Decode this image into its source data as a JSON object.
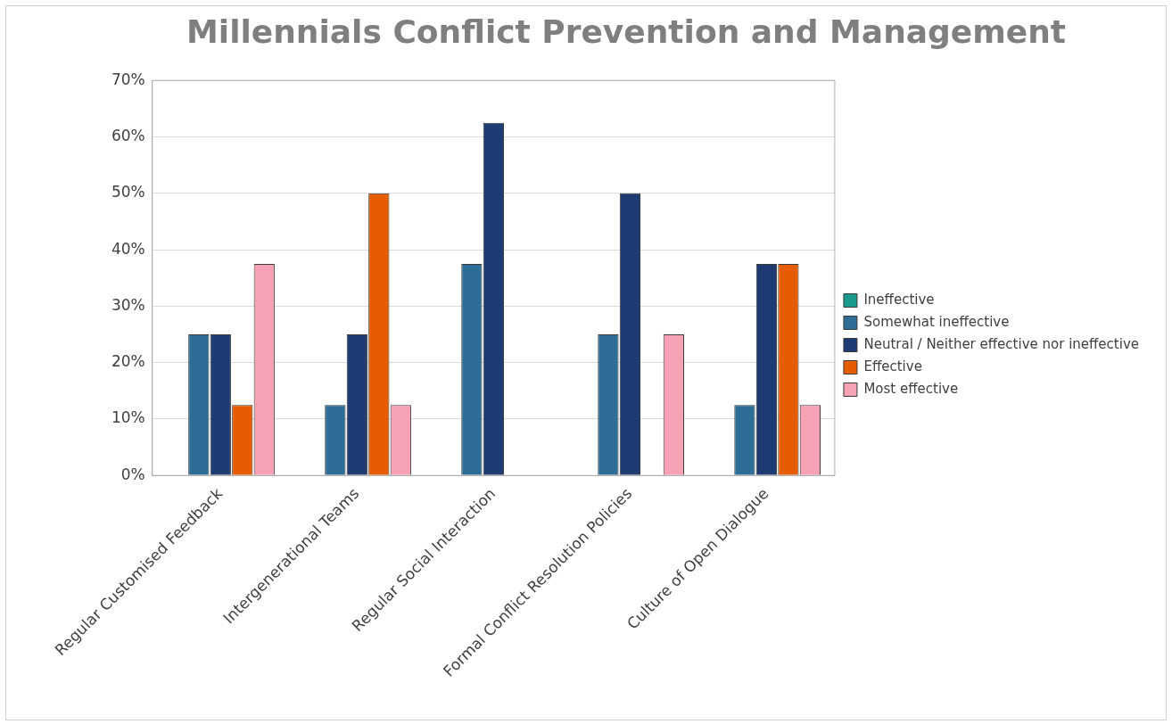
{
  "chart_data": {
    "type": "bar",
    "title": "Millennials Conflict Prevention and Management",
    "categories": [
      "Regular Customised Feedback",
      "Intergenerational Teams",
      "Regular Social Interaction",
      "Formal Conflict Resolution Policies",
      "Culture of Open Dialogue"
    ],
    "series": [
      {
        "name": "Ineffective",
        "color": "#1a9a8a",
        "values": [
          0,
          0,
          0,
          0,
          0
        ]
      },
      {
        "name": "Somewhat ineffective",
        "color": "#2e6e96",
        "values": [
          25,
          12.5,
          37.5,
          25,
          12.5
        ]
      },
      {
        "name": "Neutral / Neither effective nor ineffective",
        "color": "#1f3b73",
        "values": [
          25,
          25,
          62.5,
          50,
          37.5
        ]
      },
      {
        "name": "Effective",
        "color": "#e65c00",
        "values": [
          12.5,
          50,
          0,
          0,
          37.5
        ]
      },
      {
        "name": "Most effective",
        "color": "#f7a1b5",
        "values": [
          37.5,
          12.5,
          0,
          25,
          12.5
        ]
      }
    ],
    "ylim": [
      0,
      70
    ],
    "yticks": [
      {
        "value": 0,
        "label": "0%"
      },
      {
        "value": 10,
        "label": "10%"
      },
      {
        "value": 20,
        "label": "20%"
      },
      {
        "value": 30,
        "label": "30%"
      },
      {
        "value": 40,
        "label": "40%"
      },
      {
        "value": 50,
        "label": "50%"
      },
      {
        "value": 60,
        "label": "60%"
      },
      {
        "value": 70,
        "label": "70%"
      }
    ],
    "grid": "y",
    "legend": "right"
  }
}
